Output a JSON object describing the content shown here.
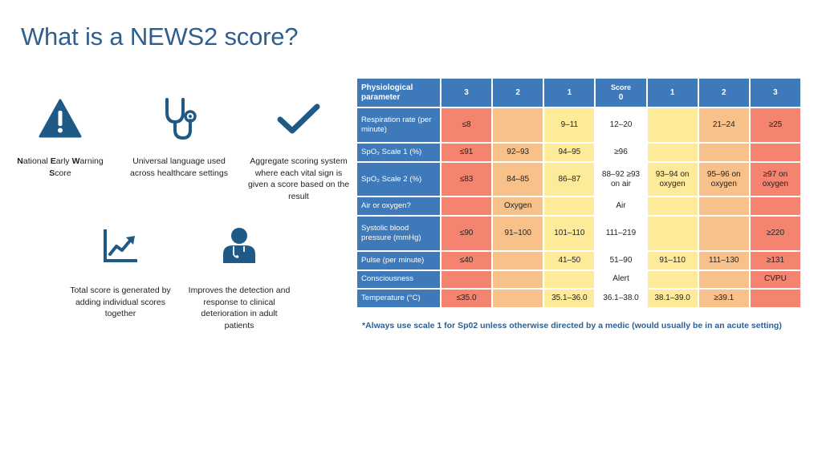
{
  "title": "What is a NEWS2 score?",
  "features": [
    {
      "icon": "warning-triangle-icon",
      "caption_parts": [
        {
          "b": "N",
          "t": "ational "
        },
        {
          "b": "E",
          "t": "arly "
        },
        {
          "b": "W",
          "t": "arning "
        },
        {
          "b": "S",
          "t": "core"
        }
      ]
    },
    {
      "icon": "stethoscope-icon",
      "caption": "Universal language used across healthcare settings"
    },
    {
      "icon": "checkmark-icon",
      "caption": "Aggregate scoring system where each vital sign is given a score based on the result"
    },
    {
      "icon": "trend-chart-icon",
      "caption": "Total score is generated by adding individual scores together"
    },
    {
      "icon": "clinician-icon",
      "caption": "Improves the detection and response to clinical deterioration in adult patients"
    }
  ],
  "table": {
    "param_header": "Physiological parameter",
    "score_header": "Score",
    "score_columns": [
      "3",
      "2",
      "1",
      "0",
      "1",
      "2",
      "3"
    ],
    "rows": [
      {
        "param": "Respiration rate (per minute)",
        "cells": [
          "≤8",
          "",
          "9–11",
          "12–20",
          "",
          "21–24",
          "≥25"
        ]
      },
      {
        "param": "SpO₂ Scale 1 (%)",
        "cells": [
          "≤91",
          "92–93",
          "94–95",
          "≥96",
          "",
          "",
          ""
        ]
      },
      {
        "param": "SpO₂ Scale 2 (%)",
        "cells": [
          "≤83",
          "84–85",
          "86–87",
          "88–92 ≥93 on air",
          "93–94 on oxygen",
          "95–96 on oxygen",
          "≥97 on oxygen"
        ]
      },
      {
        "param": "Air or oxygen?",
        "cells": [
          "",
          "Oxygen",
          "",
          "Air",
          "",
          "",
          ""
        ]
      },
      {
        "param": "Systolic blood pressure (mmHg)",
        "cells": [
          "≤90",
          "91–100",
          "101–110",
          "111–219",
          "",
          "",
          "≥220"
        ]
      },
      {
        "param": "Pulse (per minute)",
        "cells": [
          "≤40",
          "",
          "41–50",
          "51–90",
          "91–110",
          "111–130",
          "≥131"
        ]
      },
      {
        "param": "Consciousness",
        "cells": [
          "",
          "",
          "",
          "Alert",
          "",
          "",
          "CVPU"
        ]
      },
      {
        "param": "Temperature (°C)",
        "cells": [
          "≤35.0",
          "",
          "35.1–36.0",
          "36.1–38.0",
          "38.1–39.0",
          "≥39.1",
          ""
        ]
      }
    ],
    "colors": {
      "score3": "#f4836f",
      "score2": "#f9c18a",
      "score1": "#fdeb9a",
      "score0": "#ffffff",
      "header": "#3e79b9"
    }
  },
  "note": "*Always use scale 1 for Sp02 unless otherwise directed by a medic (would usually be in an acute setting)"
}
